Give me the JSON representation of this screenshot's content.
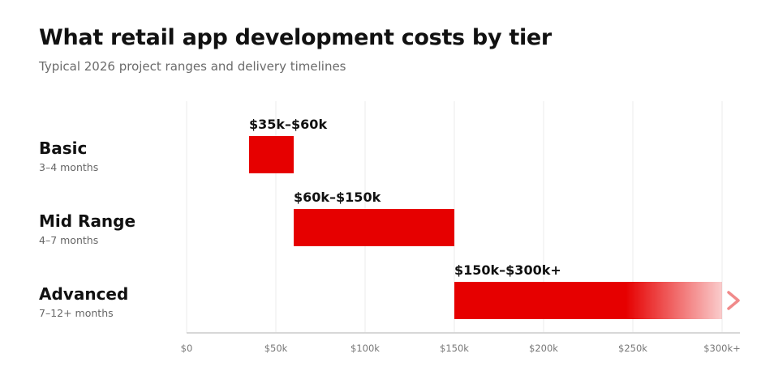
{
  "header": {
    "title": "What retail app development costs by tier",
    "subtitle": "Typical 2026 project ranges and delivery timelines"
  },
  "colors": {
    "bar": "#e60000",
    "grid": "#ebebeb",
    "axis": "#cccccc",
    "arrow": "#f08a8a"
  },
  "chart_data": {
    "type": "bar",
    "orientation": "horizontal-range",
    "title": "What retail app development costs by tier",
    "subtitle": "Typical 2026 project ranges and delivery timelines",
    "xlabel": "",
    "ylabel": "",
    "xlim": [
      0,
      300
    ],
    "x_unit": "$k",
    "grid": "vertical",
    "ticks": [
      {
        "value": 0,
        "label": "$0"
      },
      {
        "value": 50,
        "label": "$50k"
      },
      {
        "value": 100,
        "label": "$100k"
      },
      {
        "value": 150,
        "label": "$150k"
      },
      {
        "value": 200,
        "label": "$200k"
      },
      {
        "value": 250,
        "label": "$250k"
      },
      {
        "value": 300,
        "label": "$300k+"
      }
    ],
    "tiers": [
      {
        "name": "Basic",
        "timeline": "3–4 months",
        "min": 35,
        "max": 60,
        "label": "$35k–$60k",
        "open_ended": false
      },
      {
        "name": "Mid Range",
        "timeline": "4–7 months",
        "min": 60,
        "max": 150,
        "label": "$60k–$150k",
        "open_ended": false
      },
      {
        "name": "Advanced",
        "timeline": "7–12+ months",
        "min": 150,
        "max": 300,
        "label": "$150k–$300k+",
        "open_ended": true
      }
    ]
  }
}
